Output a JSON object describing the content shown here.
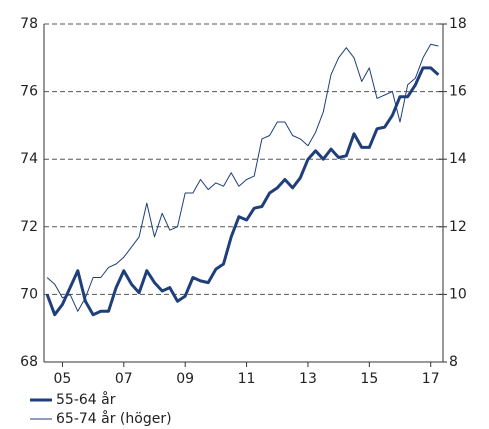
{
  "chart_data": {
    "type": "line",
    "x": [
      2005,
      2005.25,
      2005.5,
      2005.75,
      2006,
      2006.25,
      2006.5,
      2006.75,
      2007,
      2007.25,
      2007.5,
      2007.75,
      2008,
      2008.25,
      2008.5,
      2008.75,
      2009,
      2009.25,
      2009.5,
      2009.75,
      2010,
      2010.25,
      2010.5,
      2010.75,
      2011,
      2011.25,
      2011.5,
      2011.75,
      2012,
      2012.25,
      2012.5,
      2012.75,
      2013,
      2013.25,
      2013.5,
      2013.75,
      2014,
      2014.25,
      2014.5,
      2014.75,
      2015,
      2015.25,
      2015.5,
      2015.75,
      2016,
      2016.25,
      2016.5,
      2016.75,
      2017,
      2017.25,
      2017.5,
      2017.75
    ],
    "series": [
      {
        "name": "55-64 år",
        "color": "#1f3f7a",
        "width": 3,
        "values": [
          70.0,
          69.4,
          69.7,
          70.2,
          70.7,
          69.8,
          69.4,
          69.5,
          69.5,
          70.2,
          70.7,
          70.3,
          70.05,
          70.7,
          70.35,
          70.1,
          70.2,
          69.8,
          69.95,
          70.5,
          70.4,
          70.35,
          70.75,
          70.9,
          71.7,
          72.3,
          72.2,
          72.55,
          72.6,
          73.0,
          73.15,
          73.4,
          73.15,
          73.45,
          74.0,
          74.25,
          74.0,
          74.3,
          74.05,
          74.1,
          74.75,
          74.35,
          74.35,
          74.9,
          74.95,
          75.3,
          75.85,
          75.85,
          76.2,
          76.7,
          76.7,
          76.5
        ]
      },
      {
        "name": "65-74 år (höger)",
        "color": "#1f3f7a",
        "width": 1,
        "axis": "y2",
        "values": [
          10.5,
          10.3,
          9.9,
          10.0,
          9.5,
          9.9,
          10.5,
          10.5,
          10.8,
          10.9,
          11.1,
          11.4,
          11.7,
          12.7,
          11.7,
          12.4,
          11.9,
          12.0,
          13.0,
          13.0,
          13.4,
          13.1,
          13.3,
          13.2,
          13.6,
          13.2,
          13.4,
          13.5,
          14.6,
          14.7,
          15.1,
          15.1,
          14.7,
          14.6,
          14.4,
          14.8,
          15.4,
          16.5,
          17.0,
          17.3,
          17.0,
          16.3,
          16.7,
          15.8,
          15.9,
          16.0,
          15.1,
          16.2,
          16.4,
          17.0,
          17.4,
          17.35
        ]
      }
    ],
    "xlim": [
      2004.9,
      2017.9
    ],
    "xticks": [
      {
        "value": 2005.5,
        "label": "05"
      },
      {
        "value": 2007.5,
        "label": "07"
      },
      {
        "value": 2009.5,
        "label": "09"
      },
      {
        "value": 2011.5,
        "label": "11"
      },
      {
        "value": 2013.5,
        "label": "13"
      },
      {
        "value": 2015.5,
        "label": "15"
      },
      {
        "value": 2017.5,
        "label": "17"
      }
    ],
    "ylim": [
      68,
      78
    ],
    "yticks": [
      68,
      70,
      72,
      74,
      76,
      78
    ],
    "y2lim": [
      8,
      18
    ],
    "y2ticks": [
      8,
      10,
      12,
      14,
      16,
      18
    ],
    "grid": true
  }
}
